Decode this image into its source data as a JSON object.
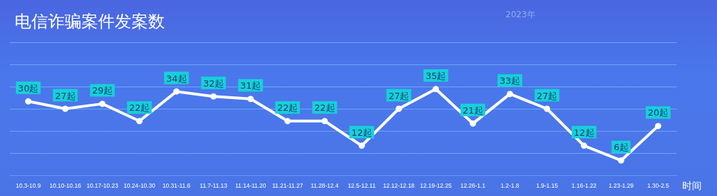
{
  "chart_data": {
    "type": "line",
    "title": "电信诈骗案件发案数",
    "subtitle": "2023年",
    "xlabel": "时间",
    "categories": [
      "10.3-10.9",
      "10.10-10.16",
      "10.17-10.23",
      "10.24-10.30",
      "10.31-11.6",
      "11.7-11.13",
      "11.14-11.20",
      "11.21-11.27",
      "11.28-12.4",
      "12.5-12.11",
      "12.12-12.18",
      "12.19-12.25",
      "12.26-1.1",
      "1.2-1.8",
      "1.9-1.15",
      "1.16-1.22",
      "1.23-1.29",
      "1.30-2.5"
    ],
    "values": [
      30,
      27,
      29,
      22,
      34,
      32,
      31,
      22,
      22,
      12,
      27,
      35,
      21,
      33,
      27,
      12,
      6,
      20
    ],
    "value_labels": [
      "30起",
      "27起",
      "29起",
      "22起",
      "34起",
      "32起",
      "31起",
      "22起",
      "22起",
      "12起",
      "27起",
      "35起",
      "21起",
      "33起",
      "27起",
      "12起",
      "6起",
      "20起"
    ],
    "color": "#ffffff",
    "marker": "circle",
    "line_style": "solid",
    "ylim": [
      0,
      54
    ],
    "yticks": [
      {
        "value": 0,
        "label": null
      },
      {
        "value": 9,
        "label": null
      },
      {
        "value": 18,
        "label": null
      },
      {
        "value": 27,
        "label": null
      },
      {
        "value": 36,
        "label": null
      },
      {
        "value": 45,
        "label": null
      },
      {
        "value": 54,
        "label": null
      }
    ],
    "grid": "y",
    "tick_labels": "x"
  }
}
